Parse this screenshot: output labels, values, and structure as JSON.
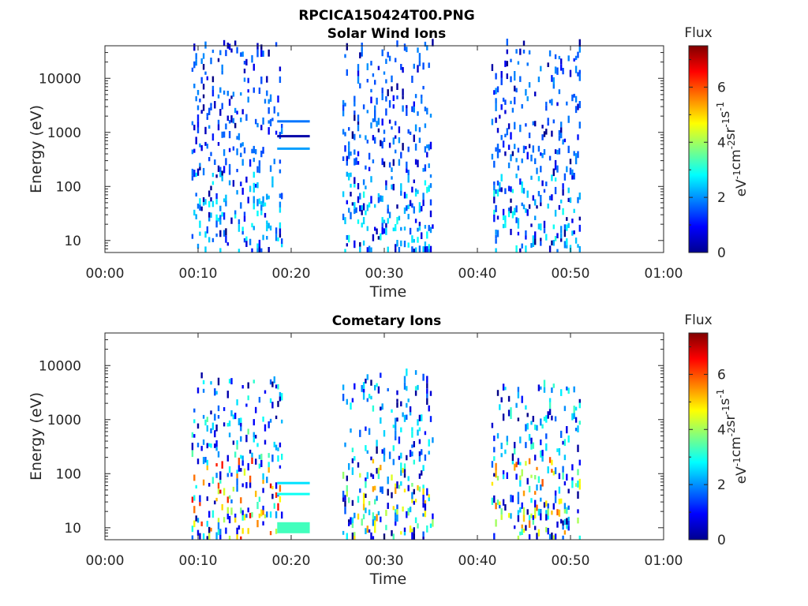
{
  "figure_title": "RPCICA150424T00.PNG",
  "chart_data": [
    {
      "type": "heatmap",
      "title": "Solar Wind Ions",
      "xlabel": "Time",
      "ylabel": "Energy (eV)",
      "x_ticks": [
        "00:00",
        "00:10",
        "00:20",
        "00:30",
        "00:40",
        "00:50",
        "01:00"
      ],
      "x_range_minutes": [
        0,
        60
      ],
      "y_scale": "log",
      "y_range": [
        6,
        40000
      ],
      "y_ticks": [
        {
          "value": 10,
          "label": "10"
        },
        {
          "value": 100,
          "label": "100"
        },
        {
          "value": 1000,
          "label": "1000"
        },
        {
          "value": 10000,
          "label": "10000"
        }
      ],
      "colorbar": {
        "label": "Flux",
        "units": "eV-1cm-2sr-1s-1",
        "range": [
          0,
          7.5
        ],
        "ticks": [
          "0",
          "2",
          "4",
          "6"
        ]
      },
      "bursts": [
        {
          "t_start": 9.3,
          "t_end": 19.0,
          "e_min": 6,
          "e_max": 40000,
          "flux_low": 1.4,
          "flux_high": 2.9
        },
        {
          "t_start": 25.5,
          "t_end": 35.2,
          "e_min": 6,
          "e_max": 40000,
          "flux_low": 1.4,
          "flux_high": 3.0
        },
        {
          "t_start": 41.5,
          "t_end": 51.0,
          "e_min": 6,
          "e_max": 40000,
          "flux_low": 1.4,
          "flux_high": 3.1
        }
      ],
      "bands": [
        {
          "t_start": 18.5,
          "t_end": 22.0,
          "energy": 1600,
          "flux": 1.8
        },
        {
          "t_start": 18.5,
          "t_end": 22.0,
          "energy": 850,
          "flux": 0.3
        },
        {
          "t_start": 18.5,
          "t_end": 22.0,
          "energy": 500,
          "flux": 2.1
        }
      ]
    },
    {
      "type": "heatmap",
      "title": "Cometary Ions",
      "xlabel": "Time",
      "ylabel": "Energy (eV)",
      "x_ticks": [
        "00:00",
        "00:10",
        "00:20",
        "00:30",
        "00:40",
        "00:50",
        "01:00"
      ],
      "x_range_minutes": [
        0,
        60
      ],
      "y_scale": "log",
      "y_range": [
        6,
        40000
      ],
      "y_ticks": [
        {
          "value": 10,
          "label": "10"
        },
        {
          "value": 100,
          "label": "100"
        },
        {
          "value": 1000,
          "label": "1000"
        },
        {
          "value": 10000,
          "label": "10000"
        }
      ],
      "colorbar": {
        "label": "Flux",
        "units": "eV-1cm-2sr-1s-1",
        "range": [
          0,
          7.5
        ],
        "ticks": [
          "0",
          "2",
          "4",
          "6"
        ]
      },
      "bursts": [
        {
          "t_start": 9.3,
          "t_end": 19.0,
          "e_min": 6,
          "e_max": 6000,
          "flux_low": 1.5,
          "flux_high": 6.8
        },
        {
          "t_start": 25.5,
          "t_end": 35.2,
          "e_min": 6,
          "e_max": 7000,
          "flux_low": 1.5,
          "flux_high": 5.5
        },
        {
          "t_start": 41.5,
          "t_end": 51.0,
          "e_min": 6,
          "e_max": 4000,
          "flux_low": 1.5,
          "flux_high": 6.0
        }
      ],
      "bands": [
        {
          "t_start": 18.5,
          "t_end": 22.0,
          "energy": 67,
          "flux": 2.6
        },
        {
          "t_start": 18.5,
          "t_end": 22.0,
          "energy": 42,
          "flux": 2.9
        },
        {
          "t_start": 18.5,
          "t_end": 22.0,
          "energy": 10,
          "flux": 3.3
        }
      ]
    }
  ]
}
